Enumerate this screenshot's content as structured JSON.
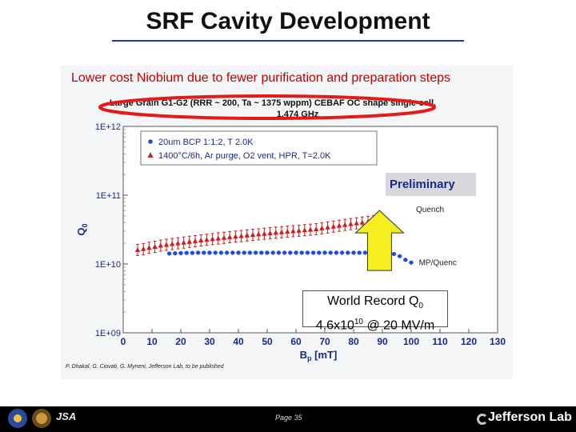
{
  "slide": {
    "title": "SRF Cavity Development",
    "subtitle": "Lower cost Niobium due to fewer purification and preparation steps",
    "page": "Page 35",
    "footer_left": "JSA",
    "footer_right": "Jefferson Lab"
  },
  "callout": {
    "line1": "World Record Q",
    "line1_sub": "0",
    "line2_pre": "4.6x10",
    "line2_sup": "10",
    "line2_post": " @ 20 MV/m"
  },
  "preliminary": "Preliminary",
  "chart_data": {
    "type": "scatter",
    "title": "Large Grain G1-G2 (RRR ~ 200, Ta ~ 1375 wppm) CEBAF OC shape single-cell,",
    "title_line2": "1.474 GHz",
    "xlabel": "B",
    "xlabel_sub": "p",
    "xlabel_unit": " [mT]",
    "ylabel": "Q",
    "ylabel_sub": "0",
    "xlim": [
      0,
      130
    ],
    "ylim_exp": [
      9,
      12
    ],
    "log_y": true,
    "grid": false,
    "legend_position": "top-left",
    "x_ticks": [
      "0",
      "10",
      "20",
      "30",
      "40",
      "50",
      "60",
      "70",
      "80",
      "90",
      "100",
      "110",
      "120",
      "130"
    ],
    "y_ticks": [
      "1E+09",
      "1E+10",
      "1E+11",
      "1E+12"
    ],
    "credit": "P. Dhakal, G. Ciovati, G. Myneni, Jefferson Lab, to be published",
    "annotations": [
      {
        "text": "Quench",
        "x": 100,
        "y": 65000000000.0
      },
      {
        "text": "MP/Quenc",
        "x": 101,
        "y": 11000000000.0
      }
    ],
    "highlight": "title underlined by red ellipse",
    "arrow": {
      "from": "callout",
      "to_x": 89,
      "to_y": 65000000000.0,
      "color": "#f5ee20"
    },
    "series": [
      {
        "name": "20um BCP 1:1:2, T   2.0K",
        "color": "#1f4ed8",
        "marker": "circle",
        "x": [
          16,
          18,
          20,
          22,
          24,
          26,
          28,
          30,
          32,
          34,
          36,
          38,
          40,
          42,
          44,
          46,
          48,
          50,
          52,
          54,
          56,
          58,
          60,
          62,
          64,
          66,
          68,
          70,
          72,
          74,
          76,
          78,
          80,
          82,
          84,
          86,
          88,
          90,
          92,
          94,
          96,
          98,
          100
        ],
        "y": [
          14200000000.0,
          14300000000.0,
          14400000000.0,
          14500000000.0,
          14500000000.0,
          14600000000.0,
          14600000000.0,
          14600000000.0,
          14600000000.0,
          14600000000.0,
          14600000000.0,
          14600000000.0,
          14600000000.0,
          14600000000.0,
          14600000000.0,
          14600000000.0,
          14600000000.0,
          14600000000.0,
          14600000000.0,
          14600000000.0,
          14600000000.0,
          14600000000.0,
          14600000000.0,
          14600000000.0,
          14600000000.0,
          14600000000.0,
          14600000000.0,
          14600000000.0,
          14600000000.0,
          14600000000.0,
          14600000000.0,
          14600000000.0,
          14600000000.0,
          14600000000.0,
          14600000000.0,
          14600000000.0,
          14600000000.0,
          14600000000.0,
          14400000000.0,
          14000000000.0,
          13000000000.0,
          11500000000.0,
          10500000000.0
        ]
      },
      {
        "name": "1400°C/6h, Ar purge, O2 vent, HPR, T=2.0K",
        "color": "#cc1f1f",
        "marker": "triangle",
        "x": [
          5,
          7,
          9,
          11,
          13,
          15,
          17,
          19,
          21,
          23,
          25,
          27,
          29,
          31,
          33,
          35,
          37,
          39,
          41,
          43,
          45,
          47,
          49,
          51,
          53,
          55,
          57,
          59,
          61,
          63,
          65,
          67,
          69,
          71,
          73,
          75,
          77,
          79,
          81,
          83,
          85,
          87,
          89
        ],
        "y": [
          16000000000.0,
          16500000000.0,
          17200000000.0,
          17800000000.0,
          18500000000.0,
          19000000000.0,
          19500000000.0,
          20000000000.0,
          20500000000.0,
          21000000000.0,
          21500000000.0,
          22000000000.0,
          22500000000.0,
          23000000000.0,
          23500000000.0,
          24000000000.0,
          24500000000.0,
          25000000000.0,
          25500000000.0,
          26000000000.0,
          26500000000.0,
          27000000000.0,
          27500000000.0,
          28000000000.0,
          28500000000.0,
          29000000000.0,
          29500000000.0,
          30000000000.0,
          30500000000.0,
          31000000000.0,
          31500000000.0,
          32000000000.0,
          33000000000.0,
          34000000000.0,
          35000000000.0,
          36000000000.0,
          37000000000.0,
          38000000000.0,
          39000000000.0,
          40000000000.0,
          41000000000.0,
          42000000000.0,
          42000000000.0
        ]
      }
    ]
  }
}
